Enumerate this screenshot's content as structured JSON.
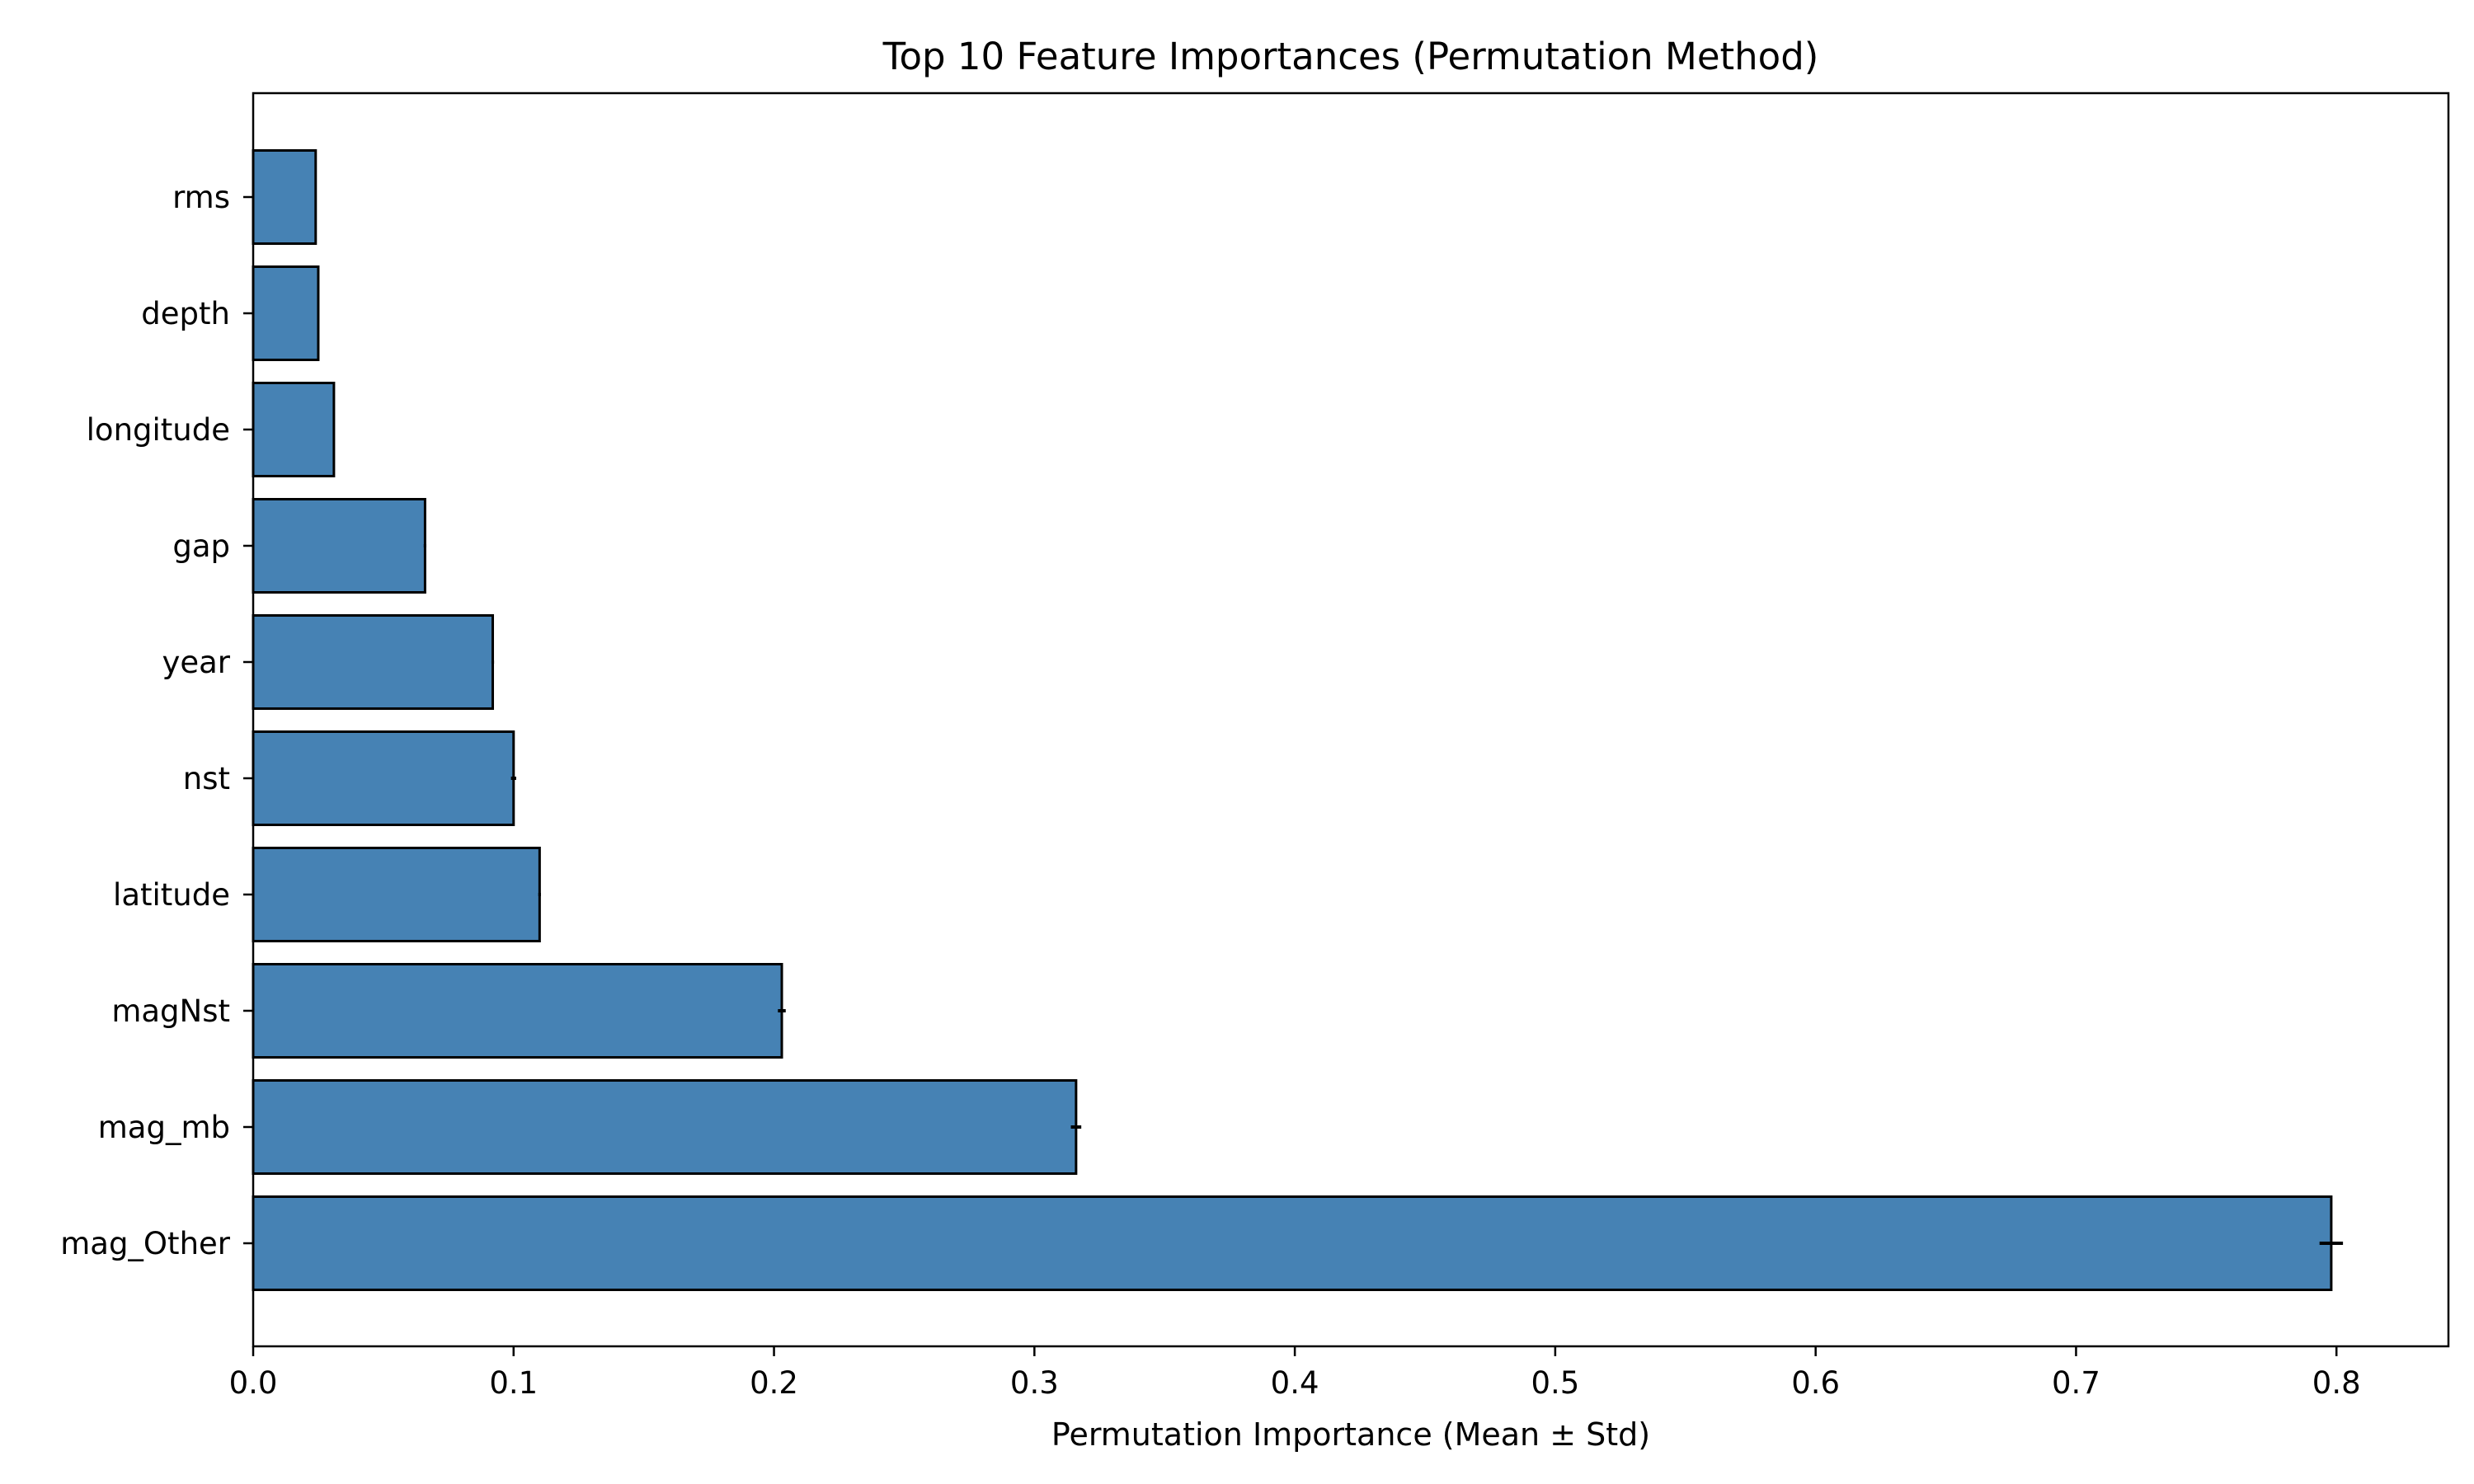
{
  "chart_data": {
    "type": "bar",
    "orientation": "horizontal",
    "title": "Top 10 Feature Importances (Permutation Method)",
    "xlabel": "Permutation Importance (Mean ± Std)",
    "ylabel": "",
    "categories": [
      "mag_Other",
      "mag_mb",
      "magNst",
      "latitude",
      "nst",
      "year",
      "gap",
      "longitude",
      "depth",
      "rms"
    ],
    "values": [
      0.798,
      0.316,
      0.203,
      0.11,
      0.1,
      0.092,
      0.066,
      0.031,
      0.025,
      0.024
    ],
    "std": [
      0.0045,
      0.002,
      0.0015,
      0.0005,
      0.001,
      0.0005,
      0.0005,
      0.0003,
      0.0003,
      0.0003
    ],
    "xlim": [
      0.0,
      0.843
    ],
    "xticks": [
      0.0,
      0.1,
      0.2,
      0.3,
      0.4,
      0.5,
      0.6,
      0.7,
      0.8
    ],
    "xtick_labels": [
      "0.0",
      "0.1",
      "0.2",
      "0.3",
      "0.4",
      "0.5",
      "0.6",
      "0.7",
      "0.8"
    ],
    "bar_color": "#4682b4",
    "edge_color": "#000000",
    "grid": false,
    "legend": false
  }
}
